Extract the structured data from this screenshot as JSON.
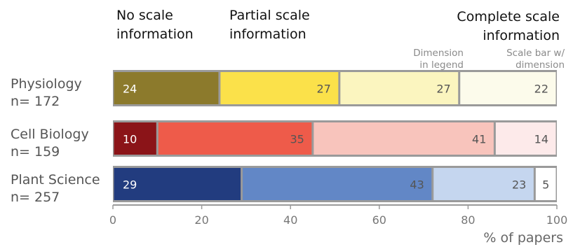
{
  "chart_data": {
    "type": "bar",
    "orientation": "horizontal",
    "stacked": true,
    "categories": [
      {
        "name": "Physiology",
        "n": "n= 172"
      },
      {
        "name": "Cell Biology",
        "n": "n= 159"
      },
      {
        "name": "Plant Science",
        "n": "n= 257"
      }
    ],
    "headers": {
      "no_scale": [
        "No scale",
        "information"
      ],
      "partial": [
        "Partial scale",
        "information"
      ],
      "complete": [
        "Complete scale",
        "information"
      ],
      "dim_legend": [
        "Dimension",
        "in legend"
      ],
      "scalebar_dim": [
        "Scale bar w/",
        "dimension"
      ]
    },
    "series": [
      {
        "key": "no_scale",
        "values": [
          24,
          10,
          29
        ]
      },
      {
        "key": "partial",
        "values": [
          27,
          35,
          43
        ]
      },
      {
        "key": "dim_legend",
        "values": [
          27,
          41,
          23
        ]
      },
      {
        "key": "scalebar_dim",
        "values": [
          22,
          14,
          5
        ]
      }
    ],
    "colors": [
      [
        "#8c7a2c",
        "#fbe14a",
        "#fbf5bf",
        "#fcfbeb"
      ],
      [
        "#8b1418",
        "#ee5b4a",
        "#f8c4bc",
        "#fdeaea"
      ],
      [
        "#223c7f",
        "#6287c6",
        "#c5d6ef",
        "#ffffff"
      ]
    ],
    "label_colors": [
      [
        "#ffffff",
        "#555555",
        "#555555",
        "#555555"
      ],
      [
        "#ffffff",
        "#555555",
        "#555555",
        "#555555"
      ],
      [
        "#ffffff",
        "#555555",
        "#555555",
        "#555555"
      ]
    ],
    "xlabel": "% of papers",
    "xlim": [
      0,
      100
    ],
    "xticks": [
      0,
      20,
      40,
      60,
      80,
      100
    ]
  }
}
